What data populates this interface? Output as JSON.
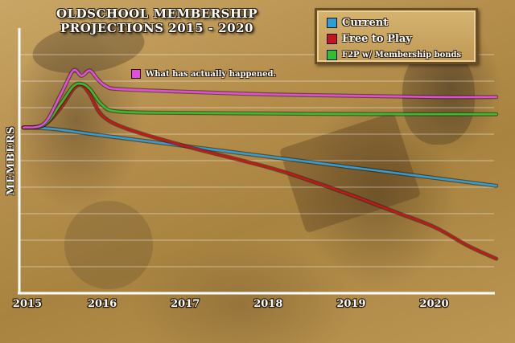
{
  "title_lines": [
    "OLDSCHOOL MEMBERSHIP",
    "PROJECTIONS 2015 - 2020"
  ],
  "colors": {
    "current": "#2f9ed8",
    "free_to_play": "#c4161c",
    "f2p_bonds": "#2fbf2f",
    "actual": "#e34be3",
    "axis": "#ffffff",
    "grid": "rgba(255,255,255,0.45)"
  },
  "legend": {
    "current": "Current",
    "free_to_play": "Free to Play",
    "f2p_bonds": "F2P w/ Membership bonds"
  },
  "annotation": "What has actually happened.",
  "chart_data": {
    "type": "line",
    "title": "OLDSCHOOL MEMBERSHIP PROJECTIONS 2015 - 2020",
    "xlabel": "",
    "ylabel": "MEMBERS",
    "x_ticks": [
      "2015",
      "2016",
      "2017",
      "2018",
      "2019",
      "2020"
    ],
    "xlim": [
      2015,
      2020.8
    ],
    "ylim": [
      0,
      100
    ],
    "grid": true,
    "legend_position": "top-right",
    "series": [
      {
        "name": "Current",
        "key": "current",
        "x": [
          2015.05,
          2015.4,
          2016,
          2017,
          2018,
          2019,
          2020,
          2020.75
        ],
        "y": [
          62.5,
          62,
          59.5,
          55.5,
          51.5,
          47.5,
          43.5,
          40.5
        ]
      },
      {
        "name": "Free to Play",
        "key": "free_to_play",
        "x": [
          2015.05,
          2015.3,
          2015.5,
          2015.65,
          2015.75,
          2015.85,
          2016,
          2016.3,
          2017,
          2018,
          2018.5,
          2019,
          2019.5,
          2020,
          2020.4,
          2020.75
        ],
        "y": [
          62.5,
          63.5,
          70,
          77,
          78.5,
          75,
          67,
          62,
          55.5,
          47.5,
          42.5,
          37,
          31,
          25,
          18,
          13
        ]
      },
      {
        "name": "F2P w/ Membership bonds",
        "key": "f2p_bonds",
        "x": [
          2015.05,
          2015.3,
          2015.5,
          2015.65,
          2015.75,
          2015.85,
          2016,
          2016.2,
          2017,
          2018,
          2019,
          2020,
          2020.75
        ],
        "y": [
          62.5,
          63.5,
          71.5,
          78,
          79,
          77,
          71,
          68.5,
          68,
          67.8,
          67.6,
          67.5,
          67.5
        ]
      },
      {
        "name": "What has actually happened.",
        "key": "actual",
        "x": [
          2015.05,
          2015.3,
          2015.5,
          2015.65,
          2015.75,
          2015.85,
          2015.95,
          2016.05,
          2016.2,
          2017,
          2018,
          2019,
          2020,
          2020.75
        ],
        "y": [
          62.5,
          64,
          75,
          84,
          82,
          84,
          80.5,
          78,
          77,
          76,
          75,
          74.5,
          74,
          74
        ]
      }
    ]
  }
}
